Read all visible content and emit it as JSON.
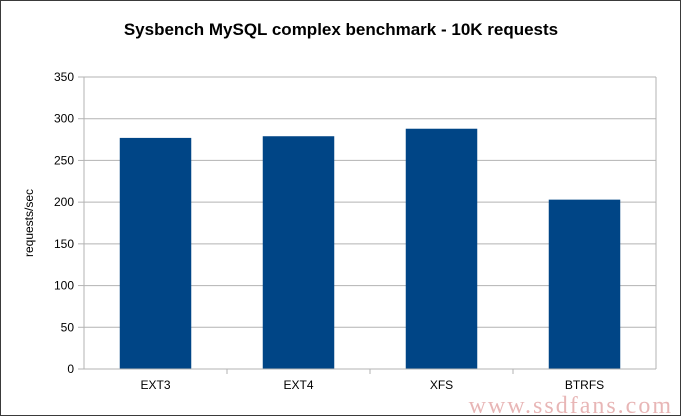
{
  "chart_data": {
    "type": "bar",
    "title": "Sysbench MySQL complex benchmark - 10K requests",
    "xlabel": "",
    "ylabel": "requests/sec",
    "categories": [
      "EXT3",
      "EXT4",
      "XFS",
      "BTRFS"
    ],
    "values": [
      277,
      279,
      288,
      203
    ],
    "ylim": [
      0,
      350
    ],
    "yticks": [
      0,
      50,
      100,
      150,
      200,
      250,
      300,
      350
    ],
    "grid": true,
    "legend": "none",
    "bar_color": "#004586"
  },
  "watermark": "www.ssdfans.com"
}
